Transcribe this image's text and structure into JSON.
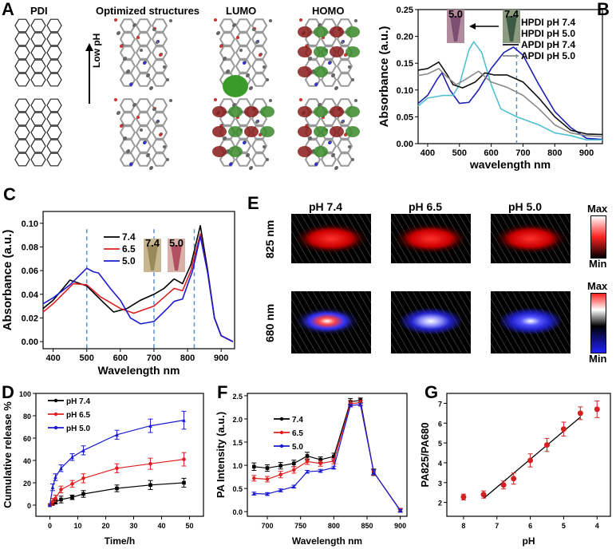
{
  "panel_labels": {
    "A": "A",
    "B": "B",
    "C": "C",
    "D": "D",
    "E": "E",
    "F": "F",
    "G": "G"
  },
  "panel_a": {
    "headers": [
      "PDI",
      "Optimized structures",
      "LUMO",
      "HOMO"
    ],
    "arrow_label": "Low pH"
  },
  "panel_e": {
    "columns": [
      "pH 7.4",
      "pH 6.5",
      "pH 5.0"
    ],
    "rows": [
      "825 nm",
      "680 nm"
    ],
    "colorbar_max": "Max",
    "colorbar_min": "Min"
  },
  "chart_data": [
    {
      "id": "B",
      "type": "line",
      "xlabel": "wavelength nm",
      "ylabel": "Absorbance (a.u.)",
      "xlim": [
        370,
        950
      ],
      "ylim": [
        0,
        0.25
      ],
      "xticks": [
        400,
        500,
        600,
        700,
        800,
        900
      ],
      "yticks": [
        0,
        0.05,
        0.1,
        0.15,
        0.2,
        0.25
      ],
      "ytick_labels": [
        "0.00",
        "0.05",
        "0.10",
        "0.15",
        "0.20",
        "0.25"
      ],
      "legend": "top-right",
      "vlines": [
        680
      ],
      "insets": [
        "5.0",
        "7.4"
      ],
      "series": [
        {
          "name": "HPDI pH 7.4",
          "color": "#1f1fb4",
          "x": [
            370,
            400,
            430,
            445,
            470,
            500,
            530,
            560,
            600,
            640,
            670,
            700,
            750,
            800,
            850,
            900,
            950
          ],
          "y": [
            0.075,
            0.09,
            0.12,
            0.132,
            0.1,
            0.075,
            0.077,
            0.1,
            0.14,
            0.17,
            0.18,
            0.165,
            0.11,
            0.06,
            0.03,
            0.01,
            0.008
          ]
        },
        {
          "name": "HPDI pH 5.0",
          "color": "#4fc0d0",
          "x": [
            370,
            400,
            450,
            480,
            500,
            530,
            545,
            570,
            600,
            630,
            680,
            750,
            800,
            850,
            900,
            950
          ],
          "y": [
            0.07,
            0.085,
            0.09,
            0.09,
            0.11,
            0.175,
            0.19,
            0.17,
            0.11,
            0.065,
            0.05,
            0.035,
            0.02,
            0.015,
            0.007,
            0.007
          ]
        },
        {
          "name": "APDI pH 7.4",
          "color": "#111111",
          "x": [
            370,
            400,
            435,
            460,
            480,
            510,
            550,
            580,
            610,
            650,
            700,
            750,
            800,
            850,
            900,
            950
          ],
          "y": [
            0.137,
            0.14,
            0.152,
            0.13,
            0.11,
            0.104,
            0.115,
            0.132,
            0.128,
            0.128,
            0.115,
            0.085,
            0.05,
            0.025,
            0.018,
            0.017
          ]
        },
        {
          "name": "APDI pH 5.0",
          "color": "#8a8a8a",
          "x": [
            370,
            400,
            435,
            460,
            490,
            520,
            560,
            600,
            650,
            700,
            750,
            800,
            850,
            900,
            950
          ],
          "y": [
            0.127,
            0.13,
            0.14,
            0.125,
            0.11,
            0.12,
            0.135,
            0.115,
            0.105,
            0.09,
            0.065,
            0.035,
            0.02,
            0.015,
            0.013
          ]
        }
      ]
    },
    {
      "id": "C",
      "type": "line",
      "xlabel": "Wavelength nm",
      "ylabel": "Absorbance (a.u.)",
      "xlim": [
        370,
        940
      ],
      "ylim": [
        -0.006,
        0.11
      ],
      "xticks": [
        400,
        500,
        600,
        700,
        800,
        900
      ],
      "yticks": [
        0,
        0.02,
        0.04,
        0.06,
        0.08,
        0.1
      ],
      "ytick_labels": [
        "0.00",
        "0.02",
        "0.04",
        "0.06",
        "0.08",
        "0.10"
      ],
      "legend": "top-center",
      "vlines": [
        500,
        700,
        820
      ],
      "insets": [
        "7.4",
        "5.0"
      ],
      "series": [
        {
          "name": "7.4",
          "color": "#000000",
          "x": [
            370,
            400,
            450,
            500,
            550,
            580,
            620,
            660,
            700,
            730,
            760,
            785,
            810,
            838,
            860,
            880,
            900,
            935
          ],
          "y": [
            0.028,
            0.035,
            0.052,
            0.047,
            0.033,
            0.025,
            0.028,
            0.035,
            0.04,
            0.045,
            0.053,
            0.049,
            0.065,
            0.098,
            0.06,
            0.02,
            0.005,
            0
          ]
        },
        {
          "name": "6.5",
          "color": "#e02020",
          "x": [
            370,
            400,
            460,
            500,
            540,
            600,
            640,
            700,
            740,
            760,
            785,
            810,
            838,
            860,
            880,
            900,
            935
          ],
          "y": [
            0.025,
            0.032,
            0.049,
            0.048,
            0.038,
            0.028,
            0.024,
            0.03,
            0.04,
            0.045,
            0.043,
            0.06,
            0.091,
            0.058,
            0.02,
            0.005,
            0
          ]
        },
        {
          "name": "5.0",
          "color": "#1a1ad0",
          "x": [
            370,
            400,
            450,
            500,
            520,
            535,
            570,
            600,
            630,
            660,
            700,
            740,
            760,
            785,
            815,
            838,
            860,
            880,
            900,
            935
          ],
          "y": [
            0.032,
            0.037,
            0.048,
            0.062,
            0.059,
            0.058,
            0.045,
            0.035,
            0.02,
            0.015,
            0.017,
            0.028,
            0.034,
            0.036,
            0.06,
            0.089,
            0.058,
            0.02,
            0.005,
            0
          ]
        }
      ]
    },
    {
      "id": "D",
      "type": "line",
      "xlabel": "Time/h",
      "ylabel": "Cumulative release %",
      "xlim": [
        -5,
        55
      ],
      "ylim": [
        -10,
        100
      ],
      "xticks": [
        0,
        10,
        20,
        30,
        40,
        50
      ],
      "yticks": [
        0,
        20,
        40,
        60,
        80,
        100
      ],
      "ytick_labels": [
        "0",
        "20",
        "40",
        "60",
        "80",
        "100"
      ],
      "legend": "top-left",
      "markers": true,
      "series": [
        {
          "name": "pH 7.4",
          "color": "#000000",
          "marker": "square",
          "x": [
            0,
            1,
            2,
            4,
            8,
            12,
            24,
            36,
            48
          ],
          "y": [
            0,
            1,
            3,
            5,
            7,
            10,
            15,
            18,
            20
          ],
          "err": [
            0,
            1,
            2,
            3,
            2,
            3,
            3,
            4,
            4
          ]
        },
        {
          "name": "pH 6.5",
          "color": "#e02020",
          "marker": "circle",
          "x": [
            0,
            1,
            2,
            4,
            8,
            12,
            24,
            36,
            48
          ],
          "y": [
            0,
            3,
            6,
            14,
            19,
            24,
            33,
            37,
            41
          ],
          "err": [
            0,
            3,
            3,
            3,
            3,
            4,
            4,
            5,
            6
          ]
        },
        {
          "name": "pH 5.0",
          "color": "#1a1ad0",
          "marker": "triangle",
          "x": [
            0,
            1,
            2,
            4,
            8,
            12,
            24,
            36,
            48
          ],
          "y": [
            0,
            16,
            25,
            33,
            43,
            49,
            63,
            71,
            76
          ],
          "err": [
            0,
            3,
            3,
            3,
            3,
            4,
            4,
            6,
            8
          ]
        }
      ]
    },
    {
      "id": "F",
      "type": "line",
      "xlabel": "Wavelength nm",
      "ylabel": "PA Intensity (a.u.)",
      "xlim": [
        670,
        910
      ],
      "ylim": [
        -0.1,
        2.55
      ],
      "xticks": [
        700,
        750,
        800,
        850,
        900
      ],
      "yticks": [
        0,
        0.5,
        1.0,
        1.5,
        2.0,
        2.5
      ],
      "ytick_labels": [
        "0.0",
        "0.5",
        "1.0",
        "1.5",
        "2.0",
        "2.5"
      ],
      "legend": "top-left",
      "markers": true,
      "series": [
        {
          "name": "7.4",
          "color": "#000000",
          "marker": "square",
          "x": [
            680,
            700,
            720,
            740,
            760,
            780,
            800,
            825,
            840,
            860,
            900
          ],
          "y": [
            0.97,
            0.94,
            0.99,
            1.04,
            1.2,
            1.12,
            1.19,
            2.37,
            2.4,
            0.85,
            0.03
          ],
          "err": [
            0.08,
            0.07,
            0.07,
            0.07,
            0.08,
            0.06,
            0.07,
            0.07,
            0.05,
            0.07,
            0.04
          ]
        },
        {
          "name": "6.5",
          "color": "#e02020",
          "marker": "circle",
          "x": [
            680,
            700,
            720,
            740,
            760,
            780,
            800,
            825,
            840,
            860,
            900
          ],
          "y": [
            0.72,
            0.7,
            0.8,
            0.9,
            1.08,
            1.04,
            1.09,
            2.33,
            2.35,
            0.85,
            0.03
          ],
          "err": [
            0.06,
            0.06,
            0.07,
            0.07,
            0.06,
            0.06,
            0.06,
            0.06,
            0.05,
            0.06,
            0.04
          ]
        },
        {
          "name": "5.0",
          "color": "#1a1ad0",
          "marker": "triangle",
          "x": [
            680,
            700,
            720,
            740,
            760,
            780,
            800,
            825,
            840,
            860,
            900
          ],
          "y": [
            0.39,
            0.38,
            0.46,
            0.54,
            0.86,
            0.88,
            0.95,
            2.29,
            2.31,
            0.85,
            0.02
          ],
          "err": [
            0.03,
            0.03,
            0.03,
            0.03,
            0.03,
            0.03,
            0.03,
            0.03,
            0.03,
            0.05,
            0.03
          ]
        }
      ]
    },
    {
      "id": "G",
      "type": "scatter",
      "xlabel": "pH",
      "ylabel": "PA825/PA680",
      "xlim": [
        8.5,
        3.6
      ],
      "ylim": [
        1.3,
        7.5
      ],
      "xticks": [
        8,
        7,
        6,
        5,
        4
      ],
      "yticks": [
        2,
        3,
        4,
        5,
        6,
        7
      ],
      "ytick_labels": [
        "2",
        "3",
        "4",
        "5",
        "6",
        "7"
      ],
      "markers": true,
      "fit_line": {
        "x": [
          7.4,
          4.5
        ],
        "y": [
          2.2,
          6.3
        ]
      },
      "series": [
        {
          "color": "#d42020",
          "marker": "circle",
          "x": [
            8,
            7.4,
            6.8,
            6.5,
            6,
            5.5,
            5,
            4.5,
            4
          ],
          "y": [
            2.27,
            2.4,
            2.88,
            3.2,
            4.12,
            4.9,
            5.7,
            6.5,
            6.7
          ],
          "err": [
            0.15,
            0.18,
            0.2,
            0.28,
            0.33,
            0.33,
            0.35,
            0.32,
            0.42
          ]
        }
      ]
    }
  ]
}
